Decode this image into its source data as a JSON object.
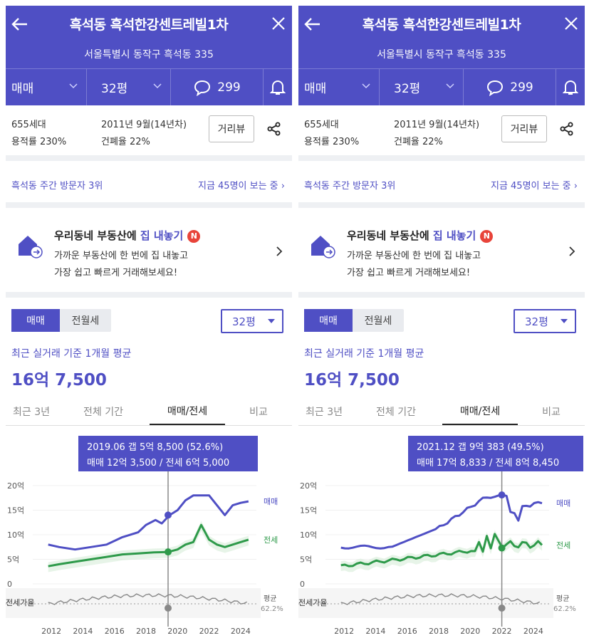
{
  "colors": {
    "brand": "#4f4fc4",
    "jeonse": "#2e9a4a",
    "ratio": "#888888"
  },
  "icons": [
    "back-arrow-icon",
    "close-icon",
    "chevron-down-icon",
    "comment-icon",
    "bell-icon",
    "share-icon",
    "house-upload-icon",
    "chevron-right-icon"
  ],
  "header": {
    "title": "흑석동 흑석한강센트레빌1차",
    "address": "서울특별시 동작구 흑석동 335",
    "trade": "매매",
    "size": "32평",
    "comments": "299"
  },
  "info": {
    "households": "655세대",
    "far": "용적률 230%",
    "built": "2011년 9월(14년차)",
    "bcr": "건폐율 22%",
    "road_view": "거리뷰"
  },
  "visit": {
    "rank": "흑석동 주간 방문자 3위",
    "now": "지금 45명이 보는 중"
  },
  "promo": {
    "title_pre": "우리동네 부동산에 ",
    "title_em": "집 내놓기",
    "badge": "N",
    "line1": "가까운 부동산에 한 번에 집 내놓고",
    "line2": "가장 쉽고 빠르게 거래해보세요!"
  },
  "section": {
    "toggle_a": "매매",
    "toggle_b": "전월세",
    "size_select": "32평",
    "avg_label": "최근 실거래 기준 1개월 평균",
    "price": "16억 7,500"
  },
  "tabs": [
    "최근 3년",
    "전체 기간",
    "매매/전세",
    "비교"
  ],
  "chart_data": [
    {
      "type": "line",
      "x_ticks": [
        "2012",
        "2014",
        "2016",
        "2018",
        "2020",
        "2022",
        "2024"
      ],
      "y_ticks": [
        "20억",
        "15억",
        "10억",
        "5억",
        "0"
      ],
      "ylim": [
        0,
        20
      ],
      "series": [
        {
          "name": "매매",
          "values": [
            [
              2011.8,
              8
            ],
            [
              2012.5,
              7.5
            ],
            [
              2013.5,
              7
            ],
            [
              2014.5,
              7.5
            ],
            [
              2015.5,
              8
            ],
            [
              2016.5,
              9.5
            ],
            [
              2017.5,
              10.5
            ],
            [
              2018,
              12
            ],
            [
              2018.6,
              13
            ],
            [
              2019,
              12.3
            ],
            [
              2019.5,
              14
            ],
            [
              2020,
              15
            ],
            [
              2020.5,
              17
            ],
            [
              2021,
              18
            ],
            [
              2021.5,
              18
            ],
            [
              2022,
              18
            ],
            [
              2022.5,
              16
            ],
            [
              2023,
              14
            ],
            [
              2023.5,
              16
            ],
            [
              2024,
              16.5
            ],
            [
              2024.5,
              16.8
            ]
          ]
        },
        {
          "name": "전세",
          "values": [
            [
              2011.8,
              3.6
            ],
            [
              2012.5,
              4
            ],
            [
              2013.5,
              4.5
            ],
            [
              2014.5,
              5
            ],
            [
              2015.5,
              5.5
            ],
            [
              2016.5,
              6
            ],
            [
              2017.5,
              6.2
            ],
            [
              2018.5,
              6.4
            ],
            [
              2019.4,
              6.5
            ],
            [
              2020,
              7
            ],
            [
              2020.5,
              8
            ],
            [
              2021,
              8.5
            ],
            [
              2021.5,
              12
            ],
            [
              2022,
              9
            ],
            [
              2022.5,
              8
            ],
            [
              2023,
              7.5
            ],
            [
              2023.5,
              8
            ],
            [
              2024,
              8.5
            ],
            [
              2024.5,
              9
            ]
          ]
        }
      ],
      "ratio_label": "전세가율",
      "avg_label": "평균",
      "avg_ratio": "62.2%",
      "tooltip": {
        "line1": "2019.06  갭 5억 8,500 (52.6%)",
        "line2": "매매 12억 3,500 / 전세 6억 5,000"
      },
      "cursor_x": 2019.4
    },
    {
      "type": "line",
      "x_ticks": [
        "2012",
        "2014",
        "2016",
        "2018",
        "2020",
        "2022",
        "2024"
      ],
      "y_ticks": [
        "20억",
        "15억",
        "10억",
        "5억",
        "0"
      ],
      "ylim": [
        0,
        20
      ],
      "series": [
        {
          "name": "매매"
        },
        {
          "name": "전세"
        }
      ],
      "ratio_label": "전세가율",
      "avg_label": "평균",
      "avg_ratio": "62.2%",
      "tooltip": {
        "line1": "2021.12  갭 9억 383 (49.5%)",
        "line2": "매매 17억 8,833 / 전세 8억 8,450"
      },
      "cursor_x": 2022
    }
  ]
}
